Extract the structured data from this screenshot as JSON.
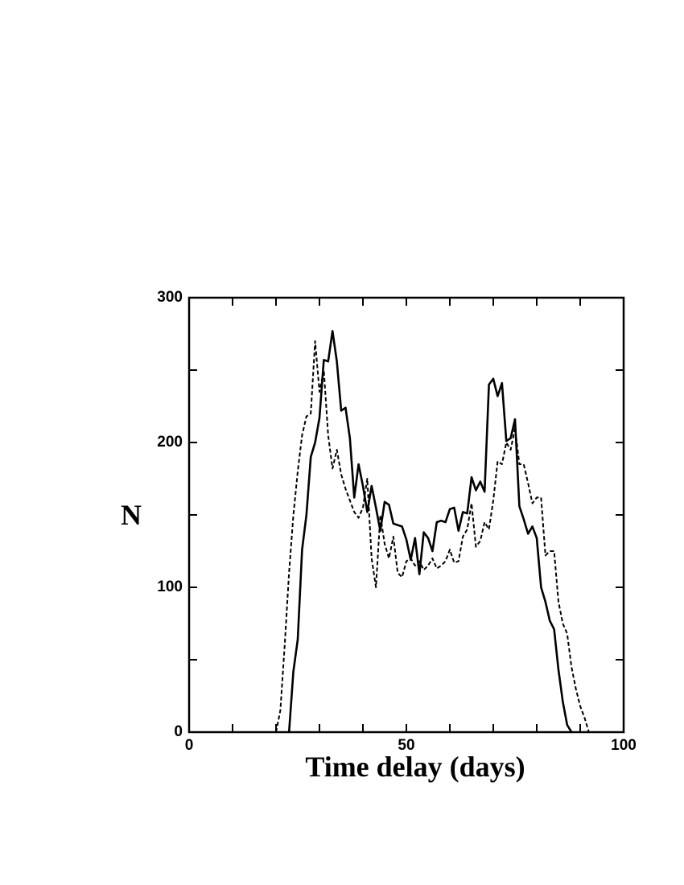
{
  "chart_data": {
    "type": "line",
    "xlabel": "Time delay (days)",
    "ylabel": "N",
    "x": [
      20,
      21,
      22,
      23,
      24,
      25,
      26,
      27,
      28,
      29,
      30,
      31,
      32,
      33,
      34,
      35,
      36,
      37,
      38,
      39,
      40,
      41,
      42,
      43,
      44,
      45,
      46,
      47,
      48,
      49,
      50,
      51,
      52,
      53,
      54,
      55,
      56,
      57,
      58,
      59,
      60,
      61,
      62,
      63,
      64,
      65,
      66,
      67,
      68,
      69,
      70,
      71,
      72,
      73,
      74,
      75,
      76,
      77,
      78,
      79,
      80,
      81,
      82,
      83,
      84,
      85,
      86,
      87,
      88,
      89,
      90,
      91,
      92
    ],
    "series": [
      {
        "color": "#000000",
        "dashed": false,
        "values": [
          null,
          null,
          null,
          0,
          42,
          64,
          126,
          150,
          190,
          200,
          217,
          257,
          256,
          277,
          256,
          222,
          224,
          203,
          162,
          185,
          170,
          152,
          170,
          155,
          139,
          159,
          157,
          144,
          143,
          142,
          133,
          119,
          134,
          109,
          138,
          134,
          125,
          145,
          146,
          145,
          154,
          155,
          139,
          152,
          151,
          176,
          167,
          173,
          166,
          240,
          244,
          232,
          241,
          201,
          203,
          216,
          156,
          147,
          137,
          142,
          134,
          100,
          90,
          77,
          71,
          43,
          21,
          5,
          0,
          null,
          null,
          null,
          null
        ]
      },
      {
        "color": "#000000",
        "dashed": true,
        "values": [
          0,
          15,
          60,
          110,
          150,
          180,
          205,
          218,
          220,
          270,
          235,
          250,
          205,
          182,
          195,
          178,
          168,
          160,
          152,
          148,
          155,
          175,
          120,
          100,
          150,
          130,
          120,
          135,
          110,
          107,
          118,
          120,
          115,
          118,
          112,
          115,
          120,
          113,
          115,
          118,
          126,
          117,
          118,
          135,
          140,
          158,
          128,
          132,
          145,
          140,
          160,
          187,
          185,
          200,
          195,
          210,
          185,
          185,
          172,
          158,
          162,
          162,
          122,
          125,
          125,
          90,
          75,
          68,
          45,
          30,
          18,
          10,
          0
        ]
      }
    ],
    "xlim": [
      0,
      100
    ],
    "xticks": [
      0,
      50,
      100
    ],
    "xminorticks": [
      10,
      20,
      30,
      40,
      60,
      70,
      80,
      90
    ],
    "ylim": [
      0,
      300
    ],
    "yticks": [
      0,
      100,
      200,
      300
    ],
    "yminorticks": [
      50,
      150,
      250
    ]
  }
}
